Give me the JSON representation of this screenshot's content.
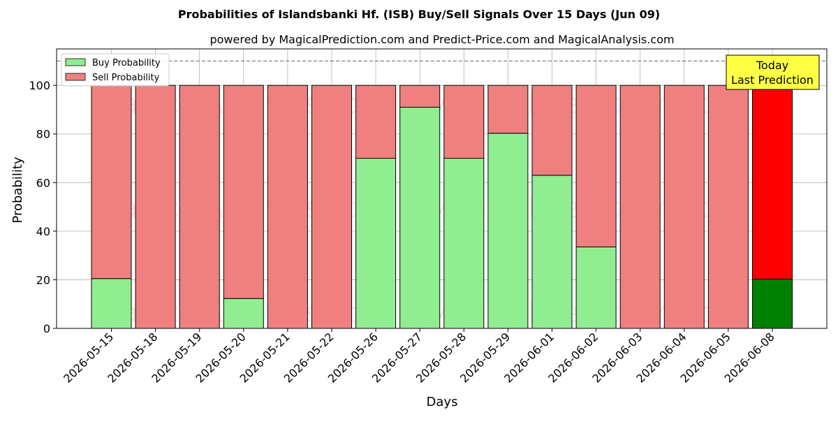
{
  "chart_data": {
    "type": "bar",
    "stacked": true,
    "title": "Probabilities of Islandsbanki Hf. (ISB) Buy/Sell Signals Over 15 Days (Jun 09)",
    "subtitle": "powered by MagicalPrediction.com and Predict-Price.com and MagicalAnalysis.com",
    "xlabel": "Days",
    "ylabel": "Probability",
    "ylim": [
      0,
      115
    ],
    "yticks": [
      0,
      20,
      40,
      60,
      80,
      100
    ],
    "reference_line": 110,
    "grid": true,
    "legend_position": "top-left",
    "categories": [
      "2026-05-15",
      "2026-05-18",
      "2026-05-19",
      "2026-05-20",
      "2026-05-21",
      "2026-05-22",
      "2026-05-26",
      "2026-05-27",
      "2026-05-28",
      "2026-05-29",
      "2026-06-01",
      "2026-06-02",
      "2026-06-03",
      "2026-06-04",
      "2026-06-05",
      "2026-06-08"
    ],
    "series": [
      {
        "name": "Buy Probability",
        "color": "#90ee90",
        "highlight_color": "#008000",
        "values": [
          20.5,
          0,
          0,
          12.3,
          0,
          0,
          70,
          91,
          70,
          80.3,
          63,
          33.5,
          0,
          0,
          0,
          20.3
        ]
      },
      {
        "name": "Sell Probability",
        "color": "#f08080",
        "highlight_color": "#ff0000",
        "values": [
          79.5,
          100,
          100,
          87.7,
          100,
          100,
          30,
          9,
          30,
          19.7,
          37,
          66.5,
          100,
          100,
          100,
          79.7
        ]
      }
    ],
    "annotation": {
      "line1": "Today",
      "line2": "Last Prediction"
    },
    "watermarks": [
      "MagicalAnalysis.com",
      "MagicalPrediction.com"
    ]
  }
}
